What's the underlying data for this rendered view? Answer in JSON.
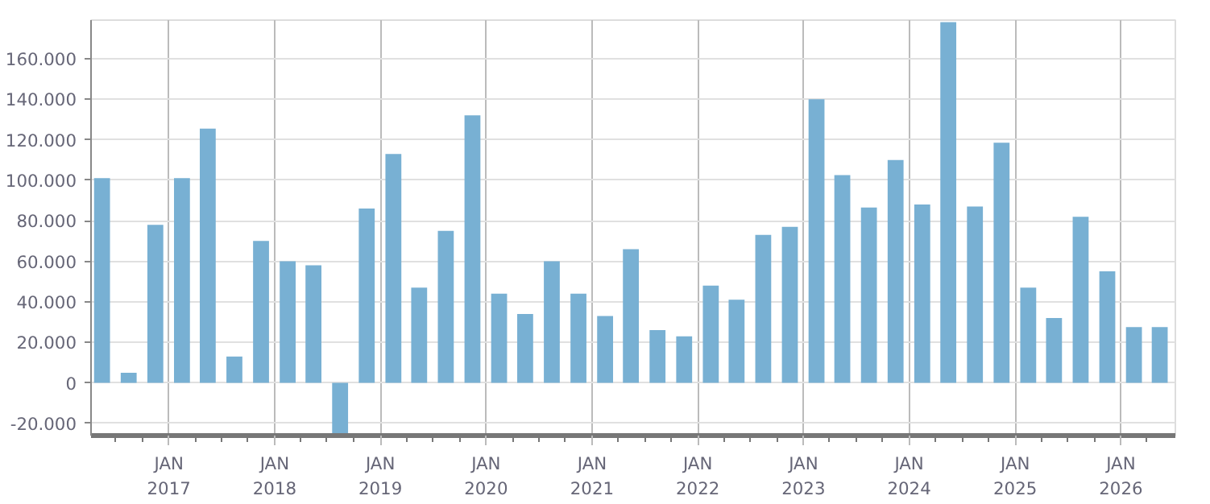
{
  "chart_data": {
    "type": "bar",
    "color": "#78b0d3",
    "x": [
      "2016-05-15",
      "2016-08-15",
      "2016-11-15",
      "2017-02-15",
      "2017-05-15",
      "2017-08-15",
      "2017-11-15",
      "2018-02-15",
      "2018-05-15",
      "2018-08-15",
      "2018-11-15",
      "2019-02-15",
      "2019-05-15",
      "2019-08-15",
      "2019-11-15",
      "2020-02-15",
      "2020-05-15",
      "2020-08-15",
      "2020-11-15",
      "2021-02-15",
      "2021-05-15",
      "2021-08-15",
      "2021-11-15",
      "2022-02-15",
      "2022-05-15",
      "2022-08-15",
      "2022-11-15",
      "2023-02-15",
      "2023-05-15",
      "2023-08-15",
      "2023-11-15",
      "2024-02-15",
      "2024-05-15",
      "2024-08-15",
      "2024-11-15",
      "2025-02-15",
      "2025-05-15",
      "2025-08-15",
      "2025-11-15",
      "2026-02-15",
      "2026-05-15"
    ],
    "values": [
      101000,
      5000,
      78000,
      101000,
      125500,
      13000,
      70000,
      60000,
      58000,
      -25500,
      86000,
      113000,
      47000,
      75000,
      132000,
      44000,
      34000,
      60000,
      44000,
      33000,
      66000,
      26000,
      23000,
      48000,
      41000,
      73000,
      77000,
      140000,
      102500,
      86500,
      110000,
      88000,
      178000,
      87000,
      118500,
      47000,
      32000,
      82000,
      55000,
      27500,
      27500
    ],
    "xlim": [
      "2016-04-07",
      "2026-07-08"
    ],
    "xticks": [
      {
        "value": "2017-01-01",
        "label": "JAN\n2017"
      },
      {
        "value": "2018-01-01",
        "label": "JAN\n2018"
      },
      {
        "value": "2019-01-01",
        "label": "JAN\n2019"
      },
      {
        "value": "2020-01-01",
        "label": "JAN\n2020"
      },
      {
        "value": "2021-01-01",
        "label": "JAN\n2021"
      },
      {
        "value": "2022-01-01",
        "label": "JAN\n2022"
      },
      {
        "value": "2023-01-01",
        "label": "JAN\n2023"
      },
      {
        "value": "2024-01-01",
        "label": "JAN\n2024"
      },
      {
        "value": "2025-01-01",
        "label": "JAN\n2025"
      },
      {
        "value": "2026-01-01",
        "label": "JAN\n2026"
      },
      {
        "value": "2016-07-01",
        "label": null
      },
      {
        "value": "2016-10-01",
        "label": null
      },
      {
        "value": "2017-04-01",
        "label": null
      },
      {
        "value": "2017-07-01",
        "label": null
      },
      {
        "value": "2017-10-01",
        "label": null
      },
      {
        "value": "2018-04-01",
        "label": null
      },
      {
        "value": "2018-07-01",
        "label": null
      },
      {
        "value": "2018-10-01",
        "label": null
      },
      {
        "value": "2019-04-01",
        "label": null
      },
      {
        "value": "2019-07-01",
        "label": null
      },
      {
        "value": "2019-10-01",
        "label": null
      },
      {
        "value": "2020-04-01",
        "label": null
      },
      {
        "value": "2020-07-01",
        "label": null
      },
      {
        "value": "2020-10-01",
        "label": null
      },
      {
        "value": "2021-04-01",
        "label": null
      },
      {
        "value": "2021-07-01",
        "label": null
      },
      {
        "value": "2021-10-01",
        "label": null
      },
      {
        "value": "2022-04-01",
        "label": null
      },
      {
        "value": "2022-07-01",
        "label": null
      },
      {
        "value": "2022-10-01",
        "label": null
      },
      {
        "value": "2023-04-01",
        "label": null
      },
      {
        "value": "2023-07-01",
        "label": null
      },
      {
        "value": "2023-10-01",
        "label": null
      },
      {
        "value": "2024-04-01",
        "label": null
      },
      {
        "value": "2024-07-01",
        "label": null
      },
      {
        "value": "2024-10-01",
        "label": null
      },
      {
        "value": "2025-04-01",
        "label": null
      },
      {
        "value": "2025-07-01",
        "label": null
      },
      {
        "value": "2025-10-01",
        "label": null
      },
      {
        "value": "2026-04-01",
        "label": null
      }
    ],
    "ylim": [
      -26000,
      179000
    ],
    "yticks": [
      {
        "value": -20000,
        "label": "-20.000"
      },
      {
        "value": 0,
        "label": "0"
      },
      {
        "value": 20000,
        "label": "20.000"
      },
      {
        "value": 40000,
        "label": "40.000"
      },
      {
        "value": 60000,
        "label": "60.000"
      },
      {
        "value": 80000,
        "label": "80.000"
      },
      {
        "value": 100000,
        "label": "100.000"
      },
      {
        "value": 120000,
        "label": "120.000"
      },
      {
        "value": 140000,
        "label": "140.000"
      },
      {
        "value": 160000,
        "label": "160.000"
      }
    ],
    "grid": true
  }
}
